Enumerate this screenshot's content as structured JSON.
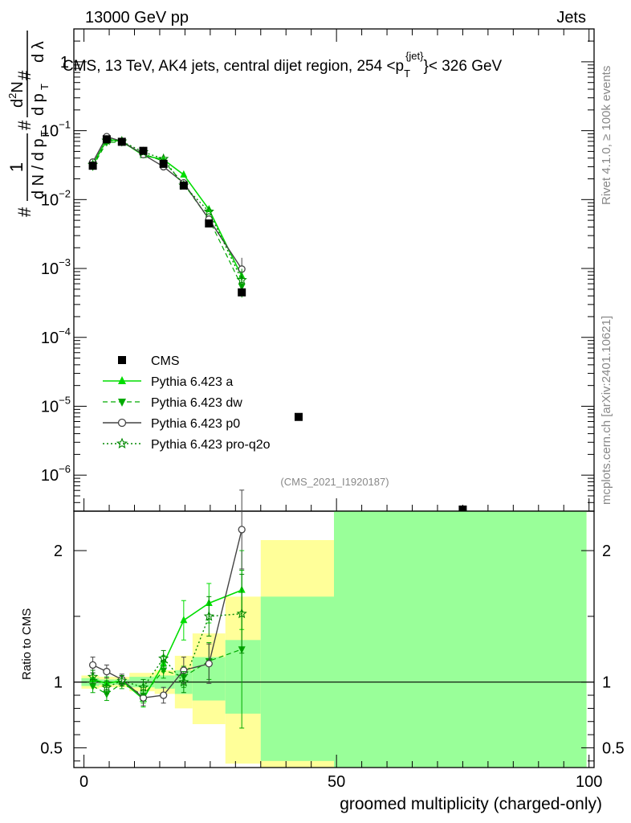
{
  "header": {
    "left": "13000 GeV pp",
    "right": "Jets"
  },
  "title": {
    "main": "CMS, 13 TeV, AK4 jets, central dijet region, 254 <p",
    "sub": "T",
    "sup": "{jet}",
    "end": "}< 326 GeV"
  },
  "side_labels": {
    "rivet": "Rivet 4.1.0, ≥ 100k events",
    "mcplots": "mcplots.cern.ch [arXiv:2401.10621]"
  },
  "watermark": "(CMS_2021_I1920187)",
  "ylabel_top": {
    "hash1": "#",
    "one": "1",
    "dN": "d N / d p",
    "T1": "T",
    "hash2": "#",
    "dp": "d p",
    "T2": "T",
    "d2N": "d",
    "two": "2",
    "N": "N",
    "dlam": "d λ",
    "hash3": "#"
  },
  "colors": {
    "cms": "#000000",
    "a": "#00dd00",
    "dw": "#00aa00",
    "p0": "#444444",
    "proq2o": "#008800",
    "band_inner": "#99ff99",
    "band_outer": "#ffff99"
  },
  "chart_data": [
    {
      "type": "line",
      "scale": "log",
      "ylim": [
        3e-07,
        3
      ],
      "xlim": [
        -2,
        101
      ],
      "yticks": [
        {
          "v": 1e-06,
          "base": "10",
          "exp": "−6"
        },
        {
          "v": 1e-05,
          "base": "10",
          "exp": "−5"
        },
        {
          "v": 0.0001,
          "base": "10",
          "exp": "−4"
        },
        {
          "v": 0.001,
          "base": "10",
          "exp": "−3"
        },
        {
          "v": 0.01,
          "base": "10",
          "exp": "−2"
        },
        {
          "v": 0.1,
          "base": "10",
          "exp": "−1"
        },
        {
          "v": 1,
          "base": "1",
          "exp": ""
        }
      ],
      "legend": {
        "placement": "bottom-left",
        "entries": [
          {
            "key": "cms",
            "label": "CMS"
          },
          {
            "key": "a",
            "label": "Pythia 6.423 a"
          },
          {
            "key": "dw",
            "label": "Pythia 6.423 dw"
          },
          {
            "key": "p0",
            "label": "Pythia 6.423 p0"
          },
          {
            "key": "proq2o",
            "label": "Pythia 6.423 pro-q2o"
          }
        ]
      },
      "cms": {
        "x": [
          1.75,
          4.5,
          7.5,
          11.75,
          15.75,
          19.75,
          24.75,
          31.25,
          42.5,
          75
        ],
        "y": [
          0.031,
          0.075,
          0.069,
          0.051,
          0.033,
          0.016,
          0.0045,
          0.00045,
          7e-06,
          3e-07
        ]
      },
      "series": [
        {
          "key": "a",
          "name": "Pythia 6.423 a",
          "x": [
            1.75,
            4.5,
            7.5,
            11.75,
            15.75,
            19.75,
            24.75,
            31.25
          ],
          "y": [
            0.032,
            0.075,
            0.07,
            0.044,
            0.038,
            0.023,
            0.0072,
            0.00077
          ]
        },
        {
          "key": "dw",
          "name": "Pythia 6.423 dw",
          "x": [
            1.75,
            4.5,
            7.5,
            11.75,
            15.75,
            19.75,
            24.75,
            31.25
          ],
          "y": [
            0.03,
            0.068,
            0.068,
            0.046,
            0.036,
            0.017,
            0.0052,
            0.00055
          ]
        },
        {
          "key": "p0",
          "name": "Pythia 6.423 p0",
          "x": [
            1.75,
            4.5,
            7.5,
            11.75,
            15.75,
            19.75,
            24.75,
            31.25
          ],
          "y": [
            0.035,
            0.082,
            0.07,
            0.045,
            0.03,
            0.0175,
            0.0052,
            0.00098
          ]
        },
        {
          "key": "proq2o",
          "name": "Pythia 6.423 pro-q2o",
          "x": [
            1.75,
            4.5,
            7.5,
            11.75,
            15.75,
            19.75,
            24.75,
            31.25
          ],
          "y": [
            0.032,
            0.072,
            0.07,
            0.049,
            0.039,
            0.016,
            0.0067,
            0.00068
          ]
        }
      ]
    },
    {
      "type": "line",
      "ylabel": "Ratio to CMS",
      "ylim": [
        0.35,
        2.3
      ],
      "xlim": [
        -2,
        101
      ],
      "yticks": [
        0.5,
        1,
        2
      ],
      "xticks": [
        0,
        50,
        100
      ],
      "xlabel": "groomed multiplicity (charged-only)",
      "bands": [
        {
          "x0": -0.5,
          "x1": 3,
          "y_in": [
            0.97,
            1.03
          ],
          "y_out": [
            0.95,
            1.05
          ]
        },
        {
          "x0": 3,
          "x1": 6,
          "y_in": [
            0.98,
            1.02
          ],
          "y_out": [
            0.96,
            1.04
          ]
        },
        {
          "x0": 6,
          "x1": 9,
          "y_in": [
            0.98,
            1.02
          ],
          "y_out": [
            0.96,
            1.04
          ]
        },
        {
          "x0": 9,
          "x1": 14,
          "y_in": [
            0.96,
            1.04
          ],
          "y_out": [
            0.93,
            1.07
          ]
        },
        {
          "x0": 14,
          "x1": 18,
          "y_in": [
            0.95,
            1.05
          ],
          "y_out": [
            0.91,
            1.09
          ]
        },
        {
          "x0": 18,
          "x1": 21.5,
          "y_in": [
            0.91,
            1.09
          ],
          "y_out": [
            0.8,
            1.2
          ]
        },
        {
          "x0": 21.5,
          "x1": 28,
          "y_in": [
            0.86,
            1.19
          ],
          "y_out": [
            0.68,
            1.37
          ]
        },
        {
          "x0": 28,
          "x1": 35,
          "y_in": [
            0.76,
            1.32
          ],
          "y_out": [
            0.38,
            1.65
          ]
        },
        {
          "x0": 35,
          "x1": 49.5,
          "y_in": [
            0.4,
            1.65
          ],
          "y_out": [
            0.35,
            2.08
          ]
        },
        {
          "x0": 49.5,
          "x1": 99.5,
          "y_in": [
            0.35,
            2.3
          ],
          "y_out": [
            0.35,
            2.3
          ]
        }
      ],
      "series": [
        {
          "key": "a",
          "name": "Pythia 6.423 a",
          "x": [
            1.75,
            4.5,
            7.5,
            11.75,
            15.75,
            19.75,
            24.75,
            31.25
          ],
          "y": [
            1.02,
            0.99,
            1.01,
            0.87,
            1.14,
            1.47,
            1.6,
            1.7
          ],
          "err": [
            0.05,
            0.05,
            0.04,
            0.06,
            0.06,
            0.15,
            0.15,
            0.3
          ]
        },
        {
          "key": "dw",
          "name": "Pythia 6.423 dw",
          "x": [
            1.75,
            4.5,
            7.5,
            11.75,
            15.75,
            19.75,
            24.75,
            31.25
          ],
          "y": [
            0.97,
            0.91,
            0.99,
            0.9,
            1.09,
            1.04,
            1.16,
            1.25
          ],
          "err": [
            0.05,
            0.05,
            0.04,
            0.06,
            0.06,
            0.08,
            0.14,
            0.6
          ]
        },
        {
          "key": "p0",
          "name": "Pythia 6.423 p0",
          "x": [
            1.75,
            4.5,
            7.5,
            11.75,
            15.75,
            19.75,
            24.75,
            31.25
          ],
          "y": [
            1.13,
            1.08,
            1.02,
            0.88,
            0.9,
            1.09,
            1.14,
            2.16
          ],
          "err": [
            0.06,
            0.05,
            0.04,
            0.06,
            0.06,
            0.1,
            0.15,
            0.3
          ]
        },
        {
          "key": "proq2o",
          "name": "Pythia 6.423 pro-q2o",
          "x": [
            1.75,
            4.5,
            7.5,
            11.75,
            15.75,
            19.75,
            24.75,
            31.25
          ],
          "y": [
            1.04,
            0.96,
            1.01,
            0.96,
            1.18,
            1.0,
            1.5,
            1.52
          ],
          "err": [
            0.05,
            0.05,
            0.04,
            0.06,
            0.06,
            0.08,
            0.15,
            0.3
          ]
        }
      ]
    }
  ]
}
